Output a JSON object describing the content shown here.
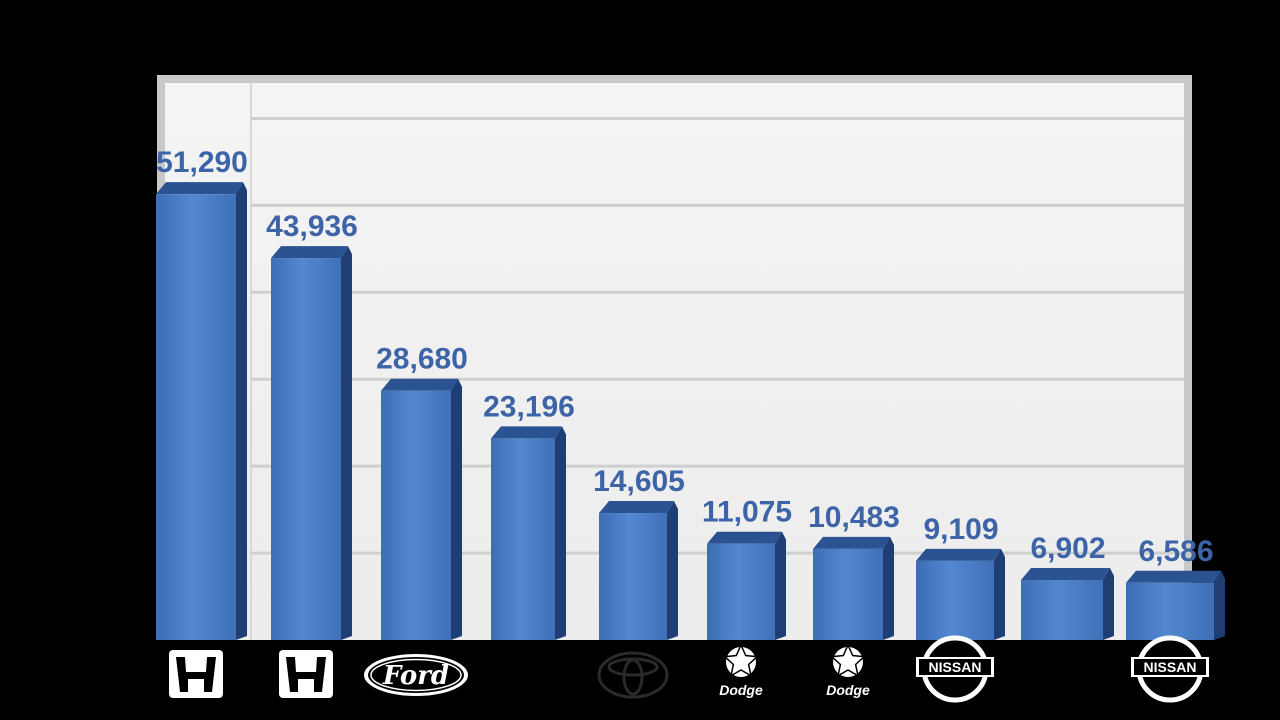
{
  "chart_data": {
    "type": "bar",
    "title": "",
    "xlabel": "",
    "ylabel": "",
    "ylim": [
      0,
      65000
    ],
    "grid": true,
    "categories": [
      "honda-logo",
      "honda-logo",
      "ford-logo",
      "",
      "toyota-logo",
      "dodge-logo",
      "dodge-logo",
      "nissan-logo",
      "",
      "nissan-logo"
    ],
    "values": [
      51290,
      43936,
      28680,
      23196,
      14605,
      11075,
      10483,
      9109,
      6902,
      6586
    ],
    "value_labels": [
      "51,290",
      "43,936",
      "28,680",
      "23,196",
      "14,605",
      "11,075",
      "10,483",
      "9,109",
      "6,902",
      "6,586"
    ],
    "logo_text": {
      "ford": "Ford",
      "dodge": "Dodge",
      "nissan": "NISSAN"
    },
    "colors": {
      "bar_front": "#4a7dc4",
      "bar_side": "#1f3f74",
      "bar_top": "#2c5391",
      "label": "#3d64a6",
      "plot_background": "#f0f0f0",
      "grid": "#cfcfcf",
      "page_background": "#000000"
    }
  }
}
